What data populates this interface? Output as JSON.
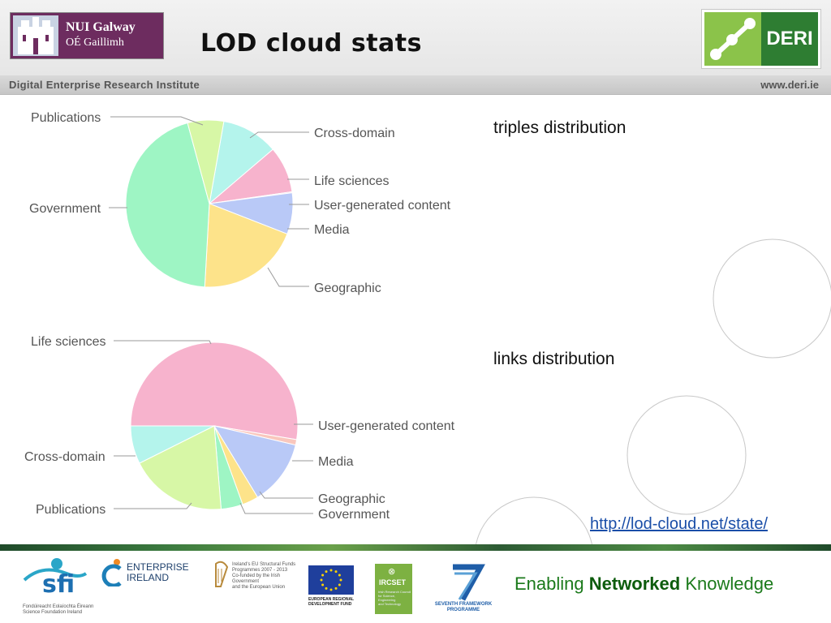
{
  "header": {
    "title": "LOD cloud stats",
    "nui_line1": "NUI Galway",
    "nui_line2": "OÉ Gaillimh",
    "deri_logo_text": "DERI"
  },
  "subbar": {
    "institute": "Digital Enterprise Research Institute",
    "website": "www.deri.ie"
  },
  "labels": {
    "triples": "triples distribution",
    "links": "links distribution",
    "url": "http://lod-cloud.net/state/"
  },
  "footer": {
    "enabling_pre": "Enabling ",
    "enabling_bold": "Networked",
    "enabling_post": " Knowledge",
    "sfi": "sfi",
    "sfi_sub1": "Fondúireacht Eolaíochta Éireann",
    "sfi_sub2": "Science Foundation Ireland",
    "ei_line1": "ENTERPRISE",
    "ei_line2": "IRELAND",
    "ndp_line1": "Ireland's EU Structural Funds",
    "ndp_line2": "Programmes 2007 - 2013",
    "ndp_line3": "Co-funded by the Irish Government",
    "ndp_line4": "and the European Union",
    "eu_line1": "EUROPEAN REGIONAL",
    "eu_line2": "DEVELOPMENT FUND",
    "ircset": "IRCSET",
    "ircset_sub1": "Irish Research Council",
    "ircset_sub2": "for Science, Engineering",
    "ircset_sub3": "and Technology",
    "fp7_line1": "SEVENTH FRAMEWORK",
    "fp7_line2": "PROGRAMME"
  },
  "chart_data": [
    {
      "type": "pie",
      "title": "triples distribution",
      "slices": [
        {
          "label": "Cross-domain",
          "value": 11,
          "color": "#b4f4ec"
        },
        {
          "label": "Life sciences",
          "value": 9,
          "color": "#f7b3cd"
        },
        {
          "label": "User-generated content",
          "value": 0.2,
          "color": "#f7ccd9"
        },
        {
          "label": "Media",
          "value": 8,
          "color": "#b9c9f7"
        },
        {
          "label": "Geographic",
          "value": 20,
          "color": "#fde38a"
        },
        {
          "label": "Government",
          "value": 45,
          "color": "#9ef5c4"
        },
        {
          "label": "Publications",
          "value": 7,
          "color": "#d7f7a6"
        }
      ]
    },
    {
      "type": "pie",
      "title": "links distribution",
      "slices": [
        {
          "label": "Life sciences",
          "value": 50,
          "color": "#f7b3cd"
        },
        {
          "label": "User-generated content",
          "value": 1,
          "color": "#f9c7bd"
        },
        {
          "label": "Media",
          "value": 12,
          "color": "#b9c9f7"
        },
        {
          "label": "Geographic",
          "value": 3,
          "color": "#fde38a"
        },
        {
          "label": "Government",
          "value": 4,
          "color": "#9ef5c4"
        },
        {
          "label": "Publications",
          "value": 18,
          "color": "#d7f7a6"
        },
        {
          "label": "Cross-domain",
          "value": 7,
          "color": "#b4f4ec"
        }
      ]
    }
  ]
}
